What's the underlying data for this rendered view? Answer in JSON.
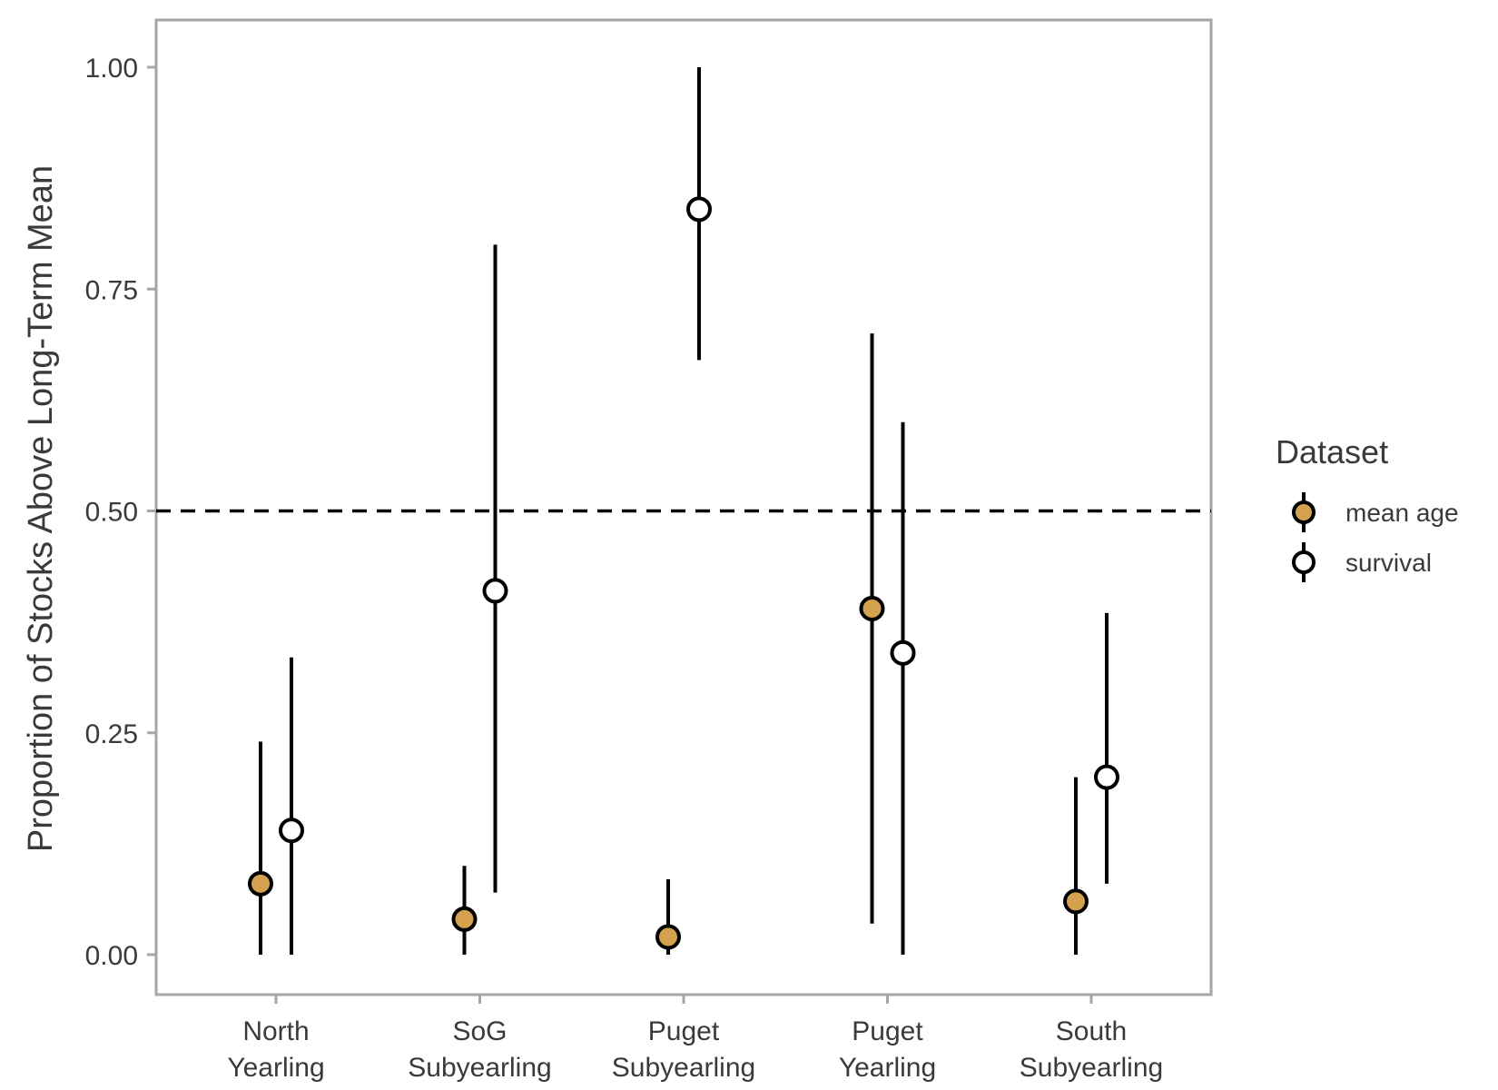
{
  "chart_data": {
    "type": "scatter",
    "subtype": "pointrange",
    "title": "",
    "xlabel": "",
    "ylabel": "Proportion of Stocks Above Long-Term Mean",
    "ylim": [
      -0.05,
      1.05
    ],
    "yticks": [
      "0.00",
      "0.25",
      "0.50",
      "0.75",
      "1.00"
    ],
    "ytick_values": [
      0,
      0.25,
      0.5,
      0.75,
      1.0
    ],
    "categories": [
      [
        "North",
        "Yearling"
      ],
      [
        "SoG",
        "Subyearling"
      ],
      [
        "Puget",
        "Subyearling"
      ],
      [
        "Puget",
        "Yearling"
      ],
      [
        "South",
        "Subyearling"
      ]
    ],
    "reference_line": {
      "y": 0.5,
      "style": "dashed"
    },
    "grid": false,
    "legend": {
      "title": "Dataset",
      "position": "right"
    },
    "series": [
      {
        "name": "mean age",
        "color": "#D4A14F",
        "points": [
          {
            "y": 0.08,
            "low": 0.0,
            "high": 0.24
          },
          {
            "y": 0.04,
            "low": 0.0,
            "high": 0.1
          },
          {
            "y": 0.02,
            "low": 0.0,
            "high": 0.085
          },
          {
            "y": 0.39,
            "low": 0.035,
            "high": 0.7
          },
          {
            "y": 0.06,
            "low": 0.0,
            "high": 0.2
          }
        ]
      },
      {
        "name": "survival",
        "color": "#FFFFFF",
        "points": [
          {
            "y": 0.14,
            "low": 0.0,
            "high": 0.335
          },
          {
            "y": 0.41,
            "low": 0.07,
            "high": 0.8
          },
          {
            "y": 0.84,
            "low": 0.67,
            "high": 1.0
          },
          {
            "y": 0.34,
            "low": 0.0,
            "high": 0.6
          },
          {
            "y": 0.2,
            "low": 0.08,
            "high": 0.385
          }
        ]
      }
    ]
  }
}
